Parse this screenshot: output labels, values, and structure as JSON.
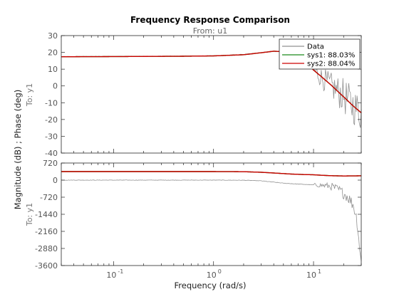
{
  "chart_data": {
    "type": "line",
    "title": "Frequency Response Comparison",
    "subtitle": "From: u1",
    "xlabel": "Frequency  (rad/s)",
    "ylabel": "Magnitude (dB) ; Phase (deg)",
    "x_scale": "log",
    "xlim": [
      0.03,
      30
    ],
    "x_tick_labels": [
      "10",
      "10",
      "10"
    ],
    "x_tick_exponents": [
      "-1",
      "0",
      "1"
    ],
    "x_tick_values": [
      0.1,
      1,
      10
    ],
    "grid": false,
    "legend": {
      "placement": "top-right",
      "entries": [
        {
          "name": "Data",
          "color": "#909090"
        },
        {
          "name": "sys1: 88.03%",
          "color": "#1a8a1a"
        },
        {
          "name": "sys2: 88.04%",
          "color": "#cc0000"
        }
      ]
    },
    "panels": [
      {
        "quantity": "magnitude",
        "row_label": "To: y1",
        "ylim": [
          -40,
          30
        ],
        "y_ticks": [
          30,
          20,
          10,
          0,
          -10,
          -20,
          -30,
          -40
        ],
        "y_tick_labels": [
          "30",
          "20",
          "10",
          "0",
          "-10",
          "-20",
          "-30",
          "-40"
        ],
        "series": [
          {
            "name": "Data",
            "x": [
              0.03,
              0.1,
              0.5,
              1,
              2,
              3,
              4,
              5,
              6,
              8,
              10,
              12,
              15,
              20,
              25,
              30
            ],
            "values": [
              17.5,
              17.6,
              17.8,
              18,
              18.8,
              19.8,
              20.5,
              20.5,
              19.5,
              15.5,
              9.5,
              5,
              0,
              -6,
              -12,
              -16
            ],
            "noise_from": 8
          },
          {
            "name": "sys1: 88.03%",
            "x": [
              0.03,
              0.1,
              0.5,
              1,
              2,
              3,
              4,
              5,
              6,
              8,
              10,
              12,
              15,
              20,
              25,
              30
            ],
            "values": [
              17.4,
              17.5,
              17.7,
              17.9,
              18.6,
              19.8,
              20.7,
              20.4,
              19.3,
              15.3,
              9.5,
              5.5,
              0.5,
              -6.5,
              -12,
              -16
            ]
          },
          {
            "name": "sys2: 88.04%",
            "x": [
              0.03,
              0.1,
              0.5,
              1,
              2,
              3,
              4,
              5,
              6,
              8,
              10,
              12,
              15,
              20,
              25,
              30
            ],
            "values": [
              17.4,
              17.5,
              17.7,
              17.9,
              18.6,
              19.8,
              20.7,
              20.4,
              19.3,
              15.3,
              9.5,
              5.5,
              0.5,
              -6.5,
              -12,
              -16
            ]
          }
        ]
      },
      {
        "quantity": "phase",
        "row_label": "To: y1",
        "ylim": [
          -3600,
          720
        ],
        "y_ticks": [
          720,
          0,
          -720,
          -1440,
          -2160,
          -2880,
          -3600
        ],
        "y_tick_labels": [
          "720",
          "0",
          "-720",
          "-1440",
          "-2160",
          "-2880",
          "-3600"
        ],
        "series": [
          {
            "name": "Data",
            "x": [
              0.03,
              0.1,
              0.5,
              1,
              2,
              3,
              5,
              8,
              10,
              12,
              15,
              18,
              20,
              22,
              25,
              27,
              28,
              29,
              30
            ],
            "values": [
              0,
              0,
              0,
              0,
              -5,
              -30,
              -130,
              -180,
              -200,
              -220,
              -260,
              -420,
              -560,
              -700,
              -1050,
              -1600,
              -2200,
              -2900,
              -3500
            ],
            "noise_from": 10
          },
          {
            "name": "sys1: 88.03%",
            "x": [
              0.03,
              0.1,
              0.5,
              1,
              2,
              3,
              4,
              5,
              6,
              8,
              10,
              12,
              15,
              20,
              25,
              30
            ],
            "values": [
              360,
              360,
              360,
              360,
              355,
              330,
              300,
              275,
              255,
              235,
              225,
              205,
              185,
              175,
              178,
              182
            ]
          },
          {
            "name": "sys2: 88.04%",
            "x": [
              0.03,
              0.1,
              0.5,
              1,
              2,
              3,
              4,
              5,
              6,
              8,
              10,
              12,
              15,
              20,
              25,
              30
            ],
            "values": [
              360,
              360,
              360,
              360,
              355,
              330,
              300,
              275,
              255,
              235,
              225,
              205,
              185,
              175,
              178,
              182
            ]
          }
        ]
      }
    ]
  }
}
